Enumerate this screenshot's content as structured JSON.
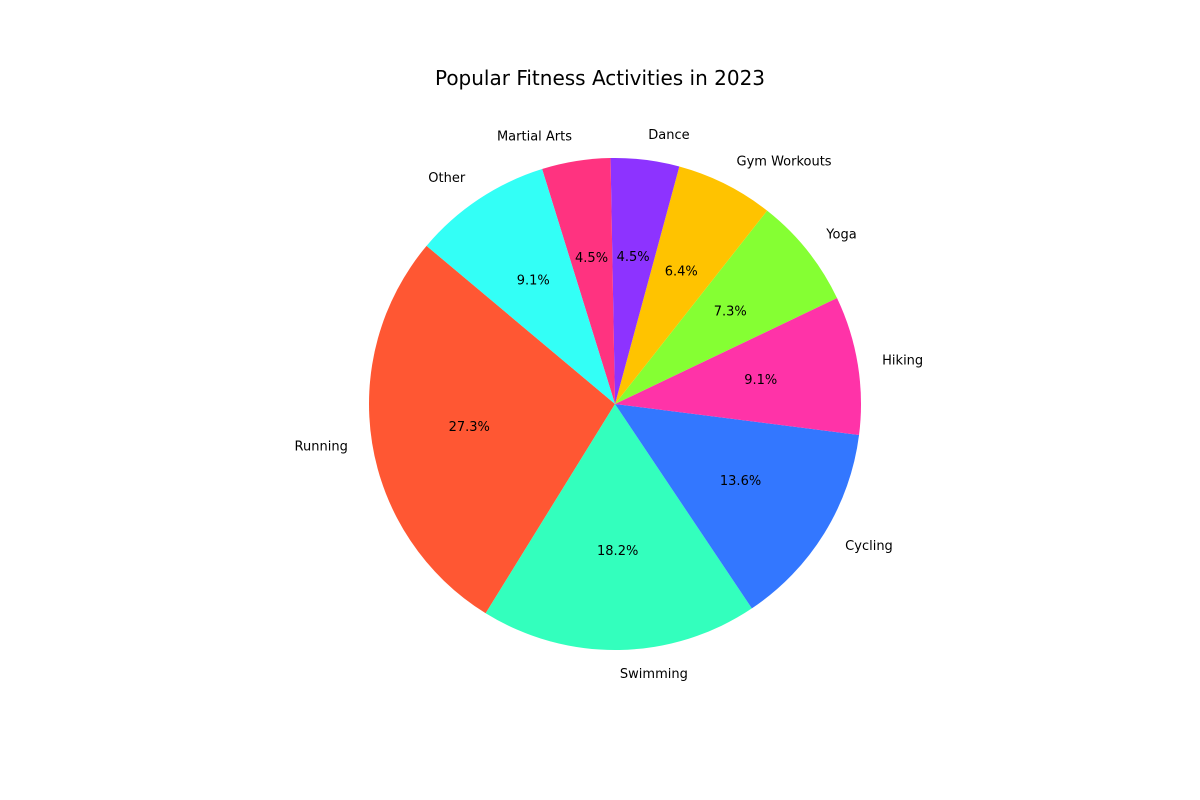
{
  "chart_data": {
    "type": "pie",
    "title": "Popular Fitness Activities in 2023",
    "categories": [
      "Running",
      "Swimming",
      "Cycling",
      "Hiking",
      "Yoga",
      "Gym Workouts",
      "Dance",
      "Martial Arts",
      "Other"
    ],
    "values": [
      27.3,
      18.2,
      13.6,
      9.1,
      7.3,
      6.4,
      4.5,
      4.5,
      9.1
    ],
    "value_labels": [
      "27.3%",
      "18.2%",
      "13.6%",
      "9.1%",
      "7.3%",
      "6.4%",
      "4.5%",
      "4.5%",
      "9.1%"
    ],
    "colors": [
      "#FF5733",
      "#33FFBD",
      "#3377FF",
      "#FF33A8",
      "#85FF33",
      "#FFC300",
      "#8D33FF",
      "#FF3380",
      "#33FFF6"
    ],
    "start_angle_deg": 140,
    "direction": "counterclockwise",
    "legend": "none"
  }
}
